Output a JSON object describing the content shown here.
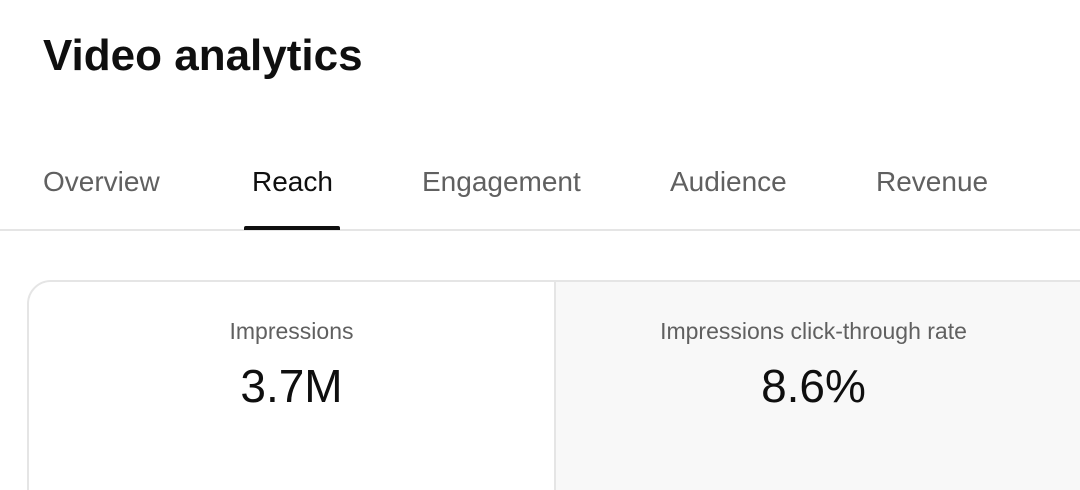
{
  "header": {
    "title": "Video analytics"
  },
  "tabs": [
    {
      "label": "Overview",
      "active": false
    },
    {
      "label": "Reach",
      "active": true
    },
    {
      "label": "Engagement",
      "active": false
    },
    {
      "label": "Audience",
      "active": false
    },
    {
      "label": "Revenue",
      "active": false
    }
  ],
  "metrics": [
    {
      "label": "Impressions",
      "value": "3.7M"
    },
    {
      "label": "Impressions click-through rate",
      "value": "8.6%"
    }
  ],
  "colors": {
    "text_primary": "#0f0f0f",
    "text_secondary": "#606060",
    "divider": "#e5e5e5",
    "selected_card_bg": "#f8f8f8"
  }
}
